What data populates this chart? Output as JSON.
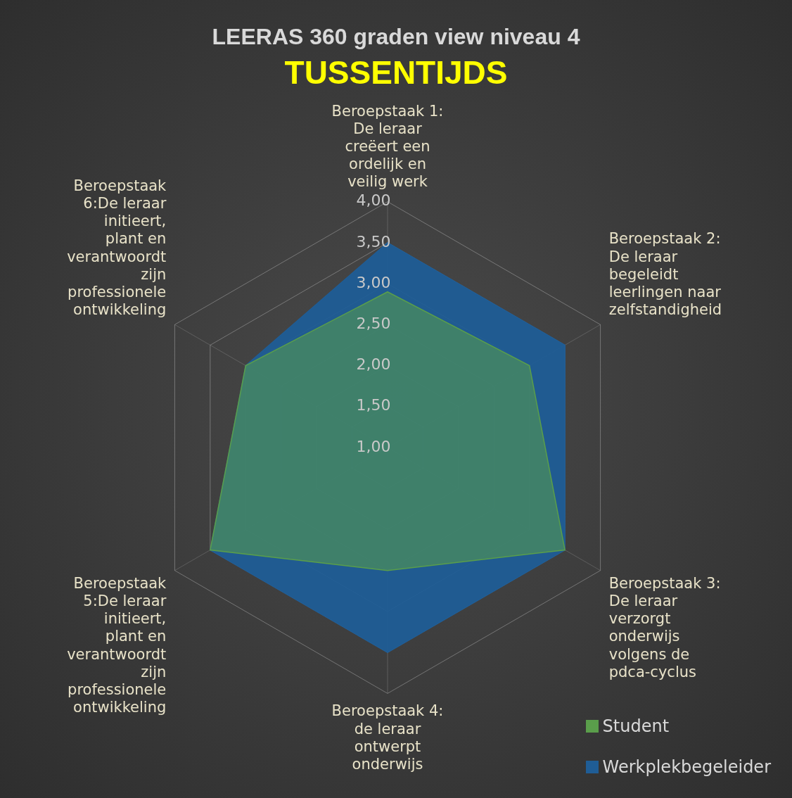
{
  "chart_data": {
    "type": "radar",
    "title": "LEERAS 360 graden view niveau 4",
    "subtitle": "TUSSENTIJDS",
    "categories": [
      "Beroepstaak 1: De leraar creëert een ordelijk en veilig werk",
      "Beroepstaak 2: De leraar begeleidt leerlingen naar zelfstandigheid",
      "Beroepstaak 3: De leraar verzorgt onderwijs volgens de pdca-cyclus",
      "Beroepstaak 4: de leraar ontwerpt onderwijs",
      "Beroepstaak 5:De leraar initieert, plant en verantwoordt zijn professionele ontwikkeling",
      "Beroepstaak 6:De leraar initieert, plant en verantwoordt zijn professionele ontwikkeling"
    ],
    "series": [
      {
        "name": "Student",
        "color": "#5a9e4b",
        "values": [
          2.9,
          3.0,
          3.5,
          2.5,
          3.5,
          3.0
        ]
      },
      {
        "name": "Werkplekbegeleider",
        "color": "#1f5d96",
        "values": [
          3.5,
          3.5,
          3.5,
          3.5,
          3.5,
          3.0
        ]
      }
    ],
    "ylim": [
      1,
      4
    ],
    "yticks": [
      {
        "value": 1,
        "label": "1,00"
      },
      {
        "value": 1.5,
        "label": "1,50"
      },
      {
        "value": 2,
        "label": "2,00"
      },
      {
        "value": 2.5,
        "label": "2,50"
      },
      {
        "value": 3,
        "label": "3,00"
      },
      {
        "value": 3.5,
        "label": "3,50"
      },
      {
        "value": 4,
        "label": "4,00"
      }
    ],
    "grid": true,
    "legend": "bottom right"
  }
}
